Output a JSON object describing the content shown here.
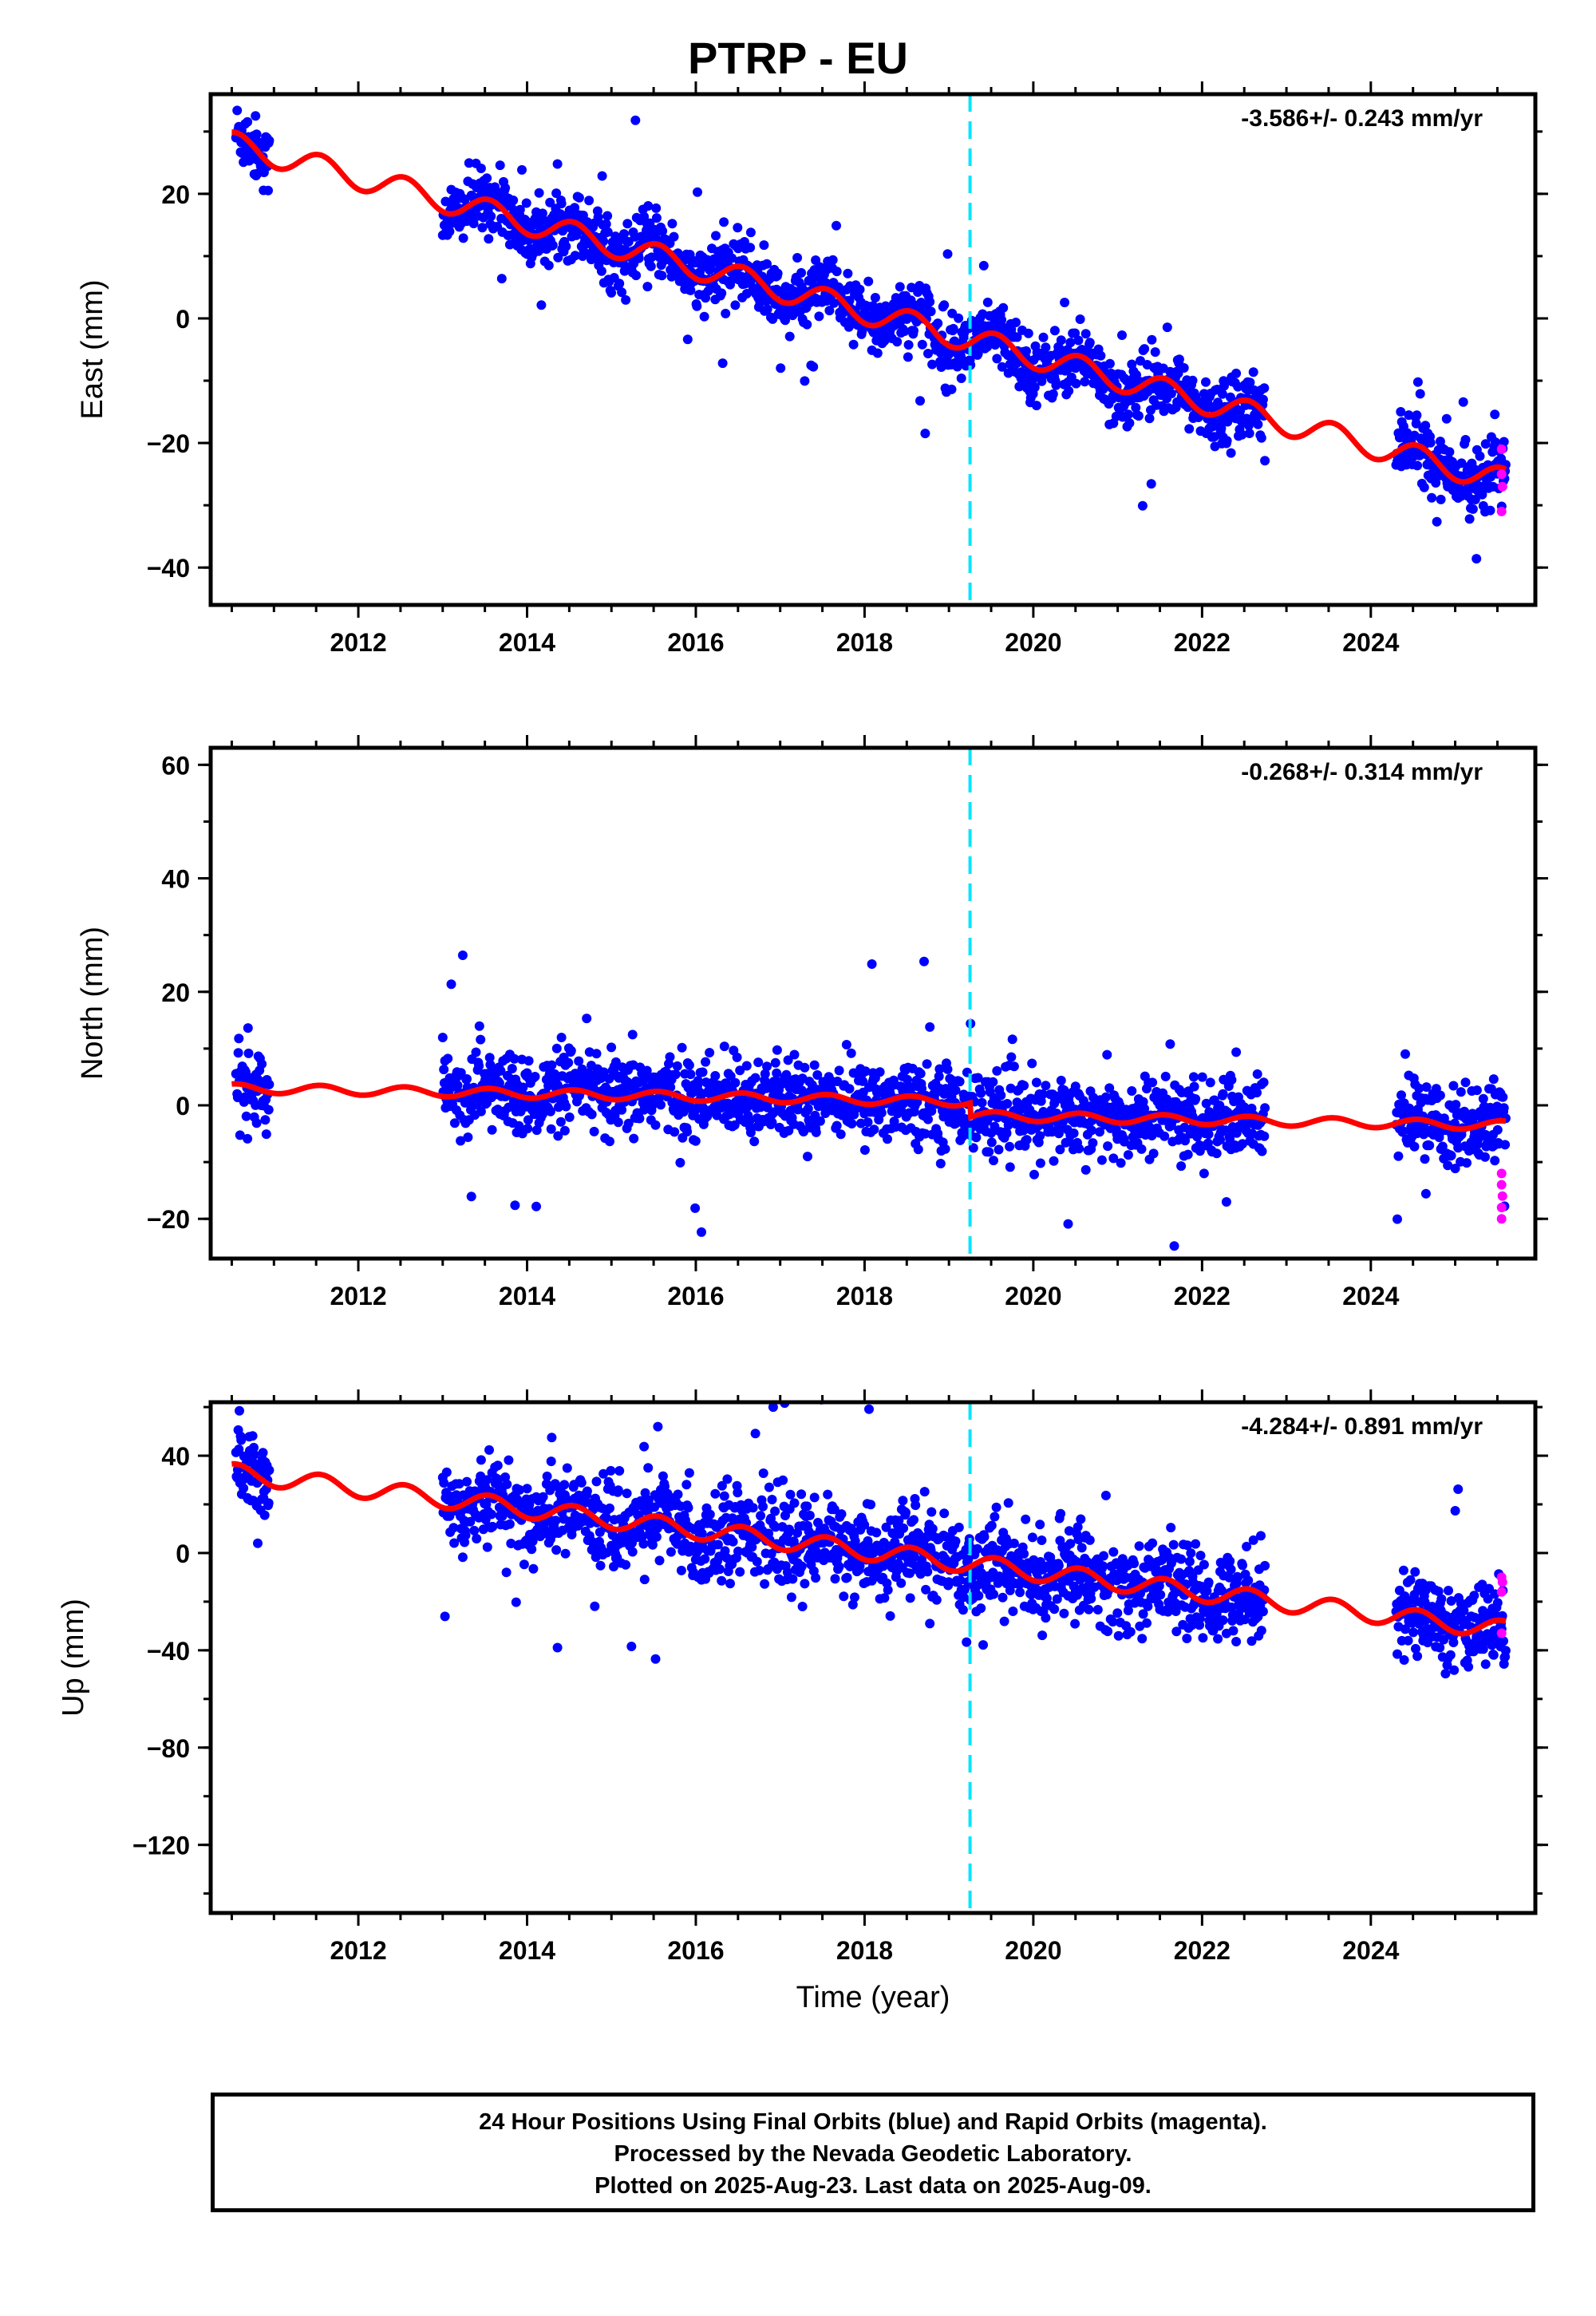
{
  "title": "PTRP - EU",
  "footer": {
    "line1": "24 Hour Positions Using Final Orbits (blue) and Rapid Orbits (magenta).",
    "line2": "Processed by the Nevada Geodetic Laboratory.",
    "line3": "Plotted on 2025-Aug-23. Last data on 2025-Aug-09."
  },
  "colors": {
    "final_orbits": "#0000ff",
    "rapid_orbits": "#ff00ff",
    "model_fit": "#ff0000",
    "equipment_change": "#00e5ff",
    "frame": "#000000"
  },
  "chart_data": [
    {
      "type": "scatter",
      "panel": "east",
      "ylabel": "East (mm)",
      "xlabel": "",
      "xlim": [
        2010.25,
        2025.95
      ],
      "ylim": [
        -46,
        36
      ],
      "xticks": [
        2012,
        2014,
        2016,
        2018,
        2020,
        2022,
        2024
      ],
      "yticks": [
        -40,
        -20,
        0,
        20
      ],
      "ytick_labels": [
        "−40",
        "−20",
        "0",
        "20"
      ],
      "rate_label": "-3.586+/- 0.243 mm/yr",
      "equipment_change_year": 2019.25,
      "data_segments": [
        [
          2010.55,
          2010.95
        ],
        [
          2013.0,
          2022.75
        ],
        [
          2024.3,
          2025.6
        ]
      ],
      "rate_mm_per_yr": -3.586,
      "annual_amplitude_mm": 2.0,
      "fit_at_2010_5": 28,
      "offsets": [],
      "scatter_mm": 2.6,
      "rapid_points": [
        {
          "x": 2025.55,
          "y": -21
        },
        {
          "x": 2025.55,
          "y": -25
        },
        {
          "x": 2025.56,
          "y": -27
        },
        {
          "x": 2025.55,
          "y": -31
        }
      ]
    },
    {
      "type": "scatter",
      "panel": "north",
      "ylabel": "North (mm)",
      "xlabel": "",
      "xlim": [
        2010.25,
        2025.95
      ],
      "ylim": [
        -27,
        63
      ],
      "xticks": [
        2012,
        2014,
        2016,
        2018,
        2020,
        2022,
        2024
      ],
      "yticks": [
        -20,
        0,
        20,
        40,
        60
      ],
      "ytick_labels": [
        "−20",
        "0",
        "20",
        "40",
        "60"
      ],
      "rate_label": "-0.268+/- 0.314 mm/yr",
      "equipment_change_year": 2019.25,
      "data_segments": [
        [
          2010.55,
          2010.95
        ],
        [
          2013.0,
          2022.75
        ],
        [
          2024.3,
          2025.6
        ]
      ],
      "rate_mm_per_yr": -0.268,
      "annual_amplitude_mm": 0.8,
      "fit_at_2010_5": 3,
      "offsets": [
        {
          "year": 2019.25,
          "value": -2.5
        }
      ],
      "scatter_mm": 3.5,
      "rapid_points": [
        {
          "x": 2025.55,
          "y": -12
        },
        {
          "x": 2025.55,
          "y": -14
        },
        {
          "x": 2025.56,
          "y": -16
        },
        {
          "x": 2025.55,
          "y": -18
        },
        {
          "x": 2025.55,
          "y": -20
        }
      ]
    },
    {
      "type": "scatter",
      "panel": "up",
      "ylabel": "Up (mm)",
      "xlabel": "Time (year)",
      "xlim": [
        2010.25,
        2025.95
      ],
      "ylim": [
        -148,
        62
      ],
      "xticks": [
        2012,
        2014,
        2016,
        2018,
        2020,
        2022,
        2024
      ],
      "yticks": [
        -120,
        -80,
        -40,
        0,
        40
      ],
      "ytick_labels": [
        "−120",
        "−80",
        "−40",
        "0",
        "40"
      ],
      "rate_label": "-4.284+/- 0.891 mm/yr",
      "equipment_change_year": 2019.25,
      "data_segments": [
        [
          2010.55,
          2010.95
        ],
        [
          2013.0,
          2022.75
        ],
        [
          2024.3,
          2025.6
        ]
      ],
      "rate_mm_per_yr": -4.284,
      "annual_amplitude_mm": 3.8,
      "fit_at_2010_5": 33,
      "offsets": [],
      "scatter_mm": 9,
      "rapid_points": [
        {
          "x": 2025.55,
          "y": -10
        },
        {
          "x": 2025.56,
          "y": -12
        },
        {
          "x": 2025.55,
          "y": -16
        },
        {
          "x": 2025.55,
          "y": -33
        }
      ]
    }
  ]
}
